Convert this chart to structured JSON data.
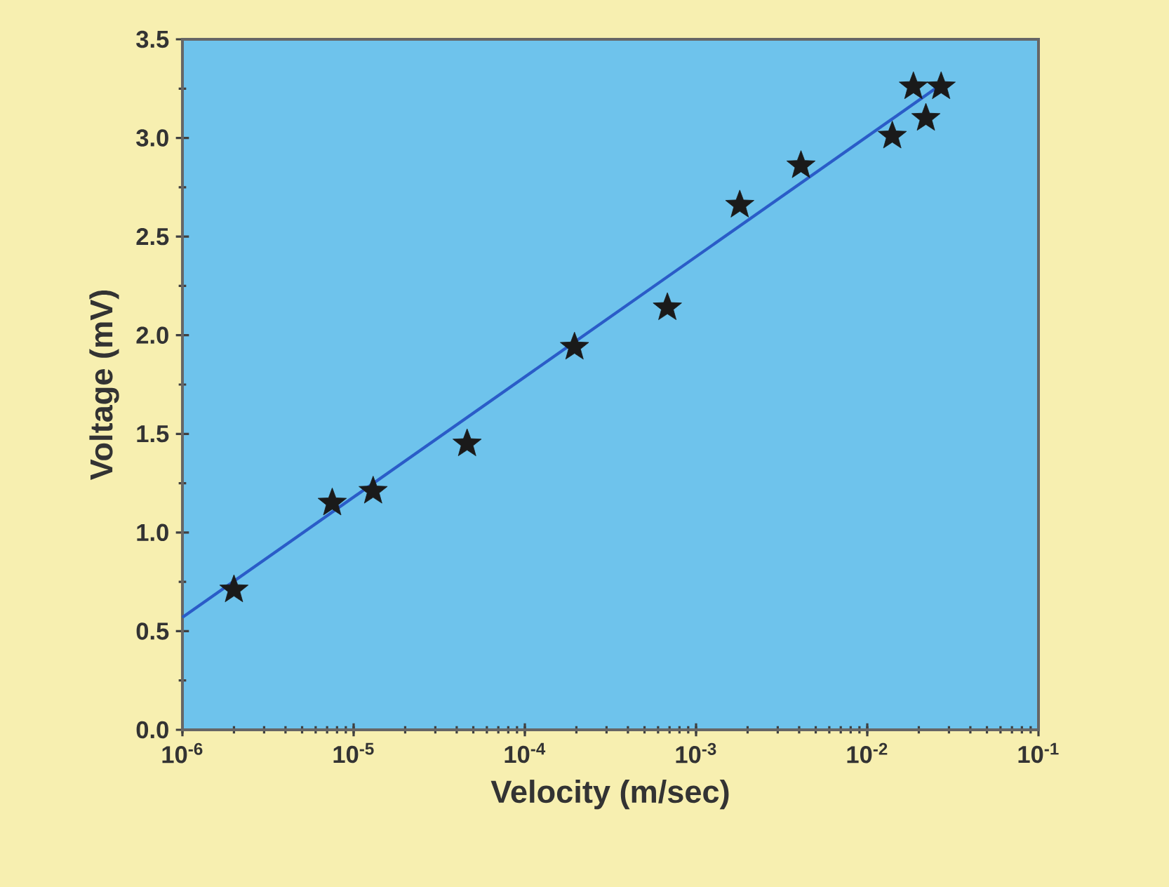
{
  "chart_data": {
    "type": "scatter",
    "xlabel": "Velocity (m/sec)",
    "ylabel": "Voltage (mV)",
    "log": "x",
    "xlim": [
      1e-06,
      0.1
    ],
    "ylim": [
      0,
      3.5
    ],
    "xticks": [
      {
        "value": 1e-06,
        "label": "10$^{-6}$"
      },
      {
        "value": 1e-05,
        "label": "10$^{-5}$"
      },
      {
        "value": 0.0001,
        "label": "10$^{-4}$"
      },
      {
        "value": 0.001,
        "label": "10$^{-3}$"
      },
      {
        "value": 0.01,
        "label": "10$^{-2}$"
      },
      {
        "value": 0.1,
        "label": "10$^{-1}$"
      }
    ],
    "yticks": [
      {
        "value": 0,
        "label": "0.0"
      },
      {
        "value": 0.5,
        "label": "0.5"
      },
      {
        "value": 1,
        "label": "1.0"
      },
      {
        "value": 1.5,
        "label": "1.5"
      },
      {
        "value": 2,
        "label": "2.0"
      },
      {
        "value": 2.5,
        "label": "2.5"
      },
      {
        "value": 3,
        "label": "3.0"
      },
      {
        "value": 3.5,
        "label": "3.5"
      }
    ],
    "grid": false,
    "series": [
      {
        "marker": "star",
        "color": "#1a1a1a",
        "x": [
          2e-06,
          7.5e-06,
          1.3e-05,
          4.6e-05,
          0.000195,
          0.00068,
          0.0018,
          0.0041,
          0.014,
          0.0186,
          0.022,
          0.027
        ],
        "values": [
          0.71,
          1.15,
          1.21,
          1.45,
          1.94,
          2.14,
          2.66,
          2.86,
          3.01,
          3.26,
          3.1,
          3.26
        ]
      },
      {
        "type": "line",
        "marker": "none",
        "line_style": "solid",
        "color": "#2a5cc8",
        "x": [
          1e-06,
          0.028
        ],
        "values": [
          0.57,
          3.28
        ]
      }
    ]
  }
}
